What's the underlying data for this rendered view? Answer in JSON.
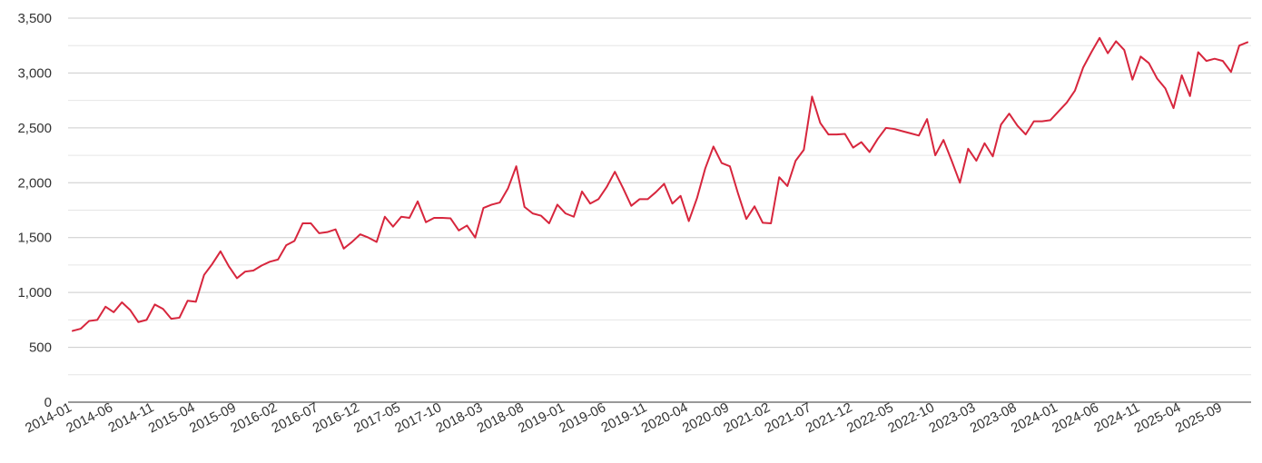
{
  "chart_data": {
    "type": "line",
    "title": "",
    "xlabel": "",
    "ylabel": "",
    "ylim": [
      0,
      3500
    ],
    "yticks": [
      0,
      500,
      1000,
      1500,
      2000,
      2500,
      3000,
      3500
    ],
    "ytick_labels": [
      "0",
      "500",
      "1,000",
      "1,500",
      "2,000",
      "2,500",
      "3,000",
      "3,500"
    ],
    "grid": true,
    "legend": "none",
    "color": "#d7263d",
    "x_start": "2014-01",
    "x_end": "2025-11",
    "xtick_labels": [
      "2014-01",
      "2014-06",
      "2014-11",
      "2015-04",
      "2015-09",
      "2016-02",
      "2016-07",
      "2016-12",
      "2017-05",
      "2017-10",
      "2018-03",
      "2018-08",
      "2019-01",
      "2019-06",
      "2019-11",
      "2020-04",
      "2020-09",
      "2021-02",
      "2021-07",
      "2021-12",
      "2022-05",
      "2022-10",
      "2023-03",
      "2023-08",
      "2024-01",
      "2024-06",
      "2024-11",
      "2025-04",
      "2025-09"
    ],
    "series": [
      {
        "name": "",
        "values": [
          650,
          670,
          740,
          750,
          870,
          820,
          910,
          840,
          730,
          750,
          890,
          850,
          760,
          770,
          925,
          915,
          1160,
          1260,
          1375,
          1240,
          1130,
          1190,
          1200,
          1245,
          1280,
          1300,
          1430,
          1470,
          1630,
          1630,
          1540,
          1550,
          1575,
          1400,
          1460,
          1530,
          1500,
          1460,
          1690,
          1600,
          1690,
          1680,
          1830,
          1640,
          1680,
          1680,
          1675,
          1565,
          1610,
          1500,
          1770,
          1800,
          1820,
          1950,
          2150,
          1780,
          1720,
          1700,
          1630,
          1800,
          1720,
          1690,
          1920,
          1810,
          1850,
          1960,
          2100,
          1950,
          1790,
          1850,
          1850,
          1915,
          1990,
          1810,
          1880,
          1650,
          1860,
          2130,
          2330,
          2180,
          2150,
          1900,
          1670,
          1785,
          1635,
          1630,
          2050,
          1970,
          2200,
          2300,
          2785,
          2545,
          2440,
          2440,
          2445,
          2320,
          2370,
          2280,
          2400,
          2500,
          2490,
          2470,
          2450,
          2430,
          2580,
          2250,
          2390,
          2200,
          2000,
          2310,
          2200,
          2360,
          2240,
          2530,
          2630,
          2520,
          2440,
          2560,
          2560,
          2570,
          2650,
          2730,
          2840,
          3050,
          3190,
          3320,
          3180,
          3290,
          3210,
          2940,
          3150,
          3090,
          2950,
          2860,
          2680,
          2980,
          2790,
          3190,
          3110,
          3130,
          3110,
          3010,
          3250,
          3280
        ]
      }
    ]
  }
}
